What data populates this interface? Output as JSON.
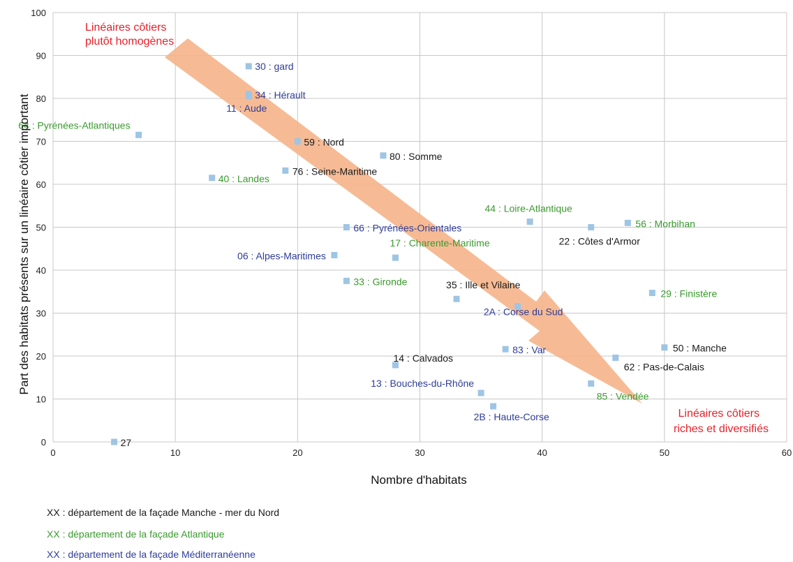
{
  "colors": {
    "manche": "#1a1a1a",
    "atlantique": "#3a9a2e",
    "mediterranee": "#2f3d98",
    "marker": "#9ec5e4",
    "arrow": "#f5b48a",
    "annotation": "#e8202a",
    "grid": "#c8c8c8"
  },
  "chart_data": {
    "type": "scatter",
    "xlabel": "Nombre d'habitats",
    "ylabel": "Part des habitats présents sur un linéaire côtier important",
    "xlim": [
      0,
      60
    ],
    "ylim": [
      0,
      100
    ],
    "xticks": [
      0,
      10,
      20,
      30,
      40,
      50,
      60
    ],
    "yticks": [
      0,
      10,
      20,
      30,
      40,
      50,
      60,
      70,
      80,
      90,
      100
    ],
    "grid": true,
    "points": [
      {
        "label": "30 : gard",
        "x": 16,
        "y": 87.5,
        "group": "mediterranee"
      },
      {
        "label": "34 : Hérault",
        "x": 16,
        "y": 81,
        "group": "mediterranee"
      },
      {
        "label": "11 : Aude",
        "x": 16,
        "y": 80.5,
        "group": "mediterranee"
      },
      {
        "label": "64 : Pyrénées-Atlantiques",
        "x": 7,
        "y": 71.5,
        "group": "atlantique"
      },
      {
        "label": "59 : Nord",
        "x": 20,
        "y": 70,
        "group": "manche"
      },
      {
        "label": "80 : Somme",
        "x": 27,
        "y": 66.7,
        "group": "manche"
      },
      {
        "label": "76 : Seine-Maritime",
        "x": 19,
        "y": 63.2,
        "group": "manche"
      },
      {
        "label": "40 : Landes",
        "x": 13,
        "y": 61.5,
        "group": "atlantique"
      },
      {
        "label": "44 : Loire-Atlantique",
        "x": 39,
        "y": 51.3,
        "group": "atlantique"
      },
      {
        "label": "56 : Morbihan",
        "x": 47,
        "y": 51,
        "group": "atlantique"
      },
      {
        "label": "22 : Côtes d'Armor",
        "x": 44,
        "y": 50,
        "group": "manche"
      },
      {
        "label": "66 : Pyrénées-Orientales",
        "x": 24,
        "y": 50,
        "group": "mediterranee"
      },
      {
        "label": "17 : Charente-Maritime",
        "x": 28,
        "y": 42.9,
        "group": "atlantique"
      },
      {
        "label": "06 : Alpes-Maritimes",
        "x": 23,
        "y": 43.5,
        "group": "mediterranee"
      },
      {
        "label": "33 : Gironde",
        "x": 24,
        "y": 37.5,
        "group": "atlantique"
      },
      {
        "label": "35 : Ille et Vilaine",
        "x": 33,
        "y": 33.3,
        "group": "manche"
      },
      {
        "label": "29 : Finistère",
        "x": 49,
        "y": 34.7,
        "group": "atlantique"
      },
      {
        "label": "2A : Corse du Sud",
        "x": 38,
        "y": 31.6,
        "group": "mediterranee"
      },
      {
        "label": "50 : Manche",
        "x": 50,
        "y": 22,
        "group": "manche"
      },
      {
        "label": "83 : Var",
        "x": 37,
        "y": 21.6,
        "group": "mediterranee"
      },
      {
        "label": "62 : Pas-de-Calais",
        "x": 46,
        "y": 19.6,
        "group": "manche"
      },
      {
        "label": "14 : Calvados",
        "x": 28,
        "y": 17.9,
        "group": "manche"
      },
      {
        "label": "13 : Bouches-du-Rhône",
        "x": 35,
        "y": 11.4,
        "group": "mediterranee"
      },
      {
        "label": "85 : Vendée",
        "x": 44,
        "y": 13.6,
        "group": "atlantique"
      },
      {
        "label": "2B : Haute-Corse",
        "x": 36,
        "y": 8.3,
        "group": "mediterranee"
      },
      {
        "label": "27",
        "x": 5,
        "y": 0,
        "group": "manche"
      }
    ],
    "annotations": [
      {
        "text": "Linéaires côtiers",
        "text2": "plutôt homogènes"
      },
      {
        "text": "Linéaires côtiers",
        "text2": "riches et diversifiés"
      }
    ]
  },
  "legend": [
    {
      "text": "XX : département de la façade Manche - mer du Nord",
      "group": "manche"
    },
    {
      "text": "XX : département de la façade Atlantique",
      "group": "atlantique"
    },
    {
      "text": "XX : département de la façade Méditerranéenne",
      "group": "mediterranee"
    }
  ]
}
